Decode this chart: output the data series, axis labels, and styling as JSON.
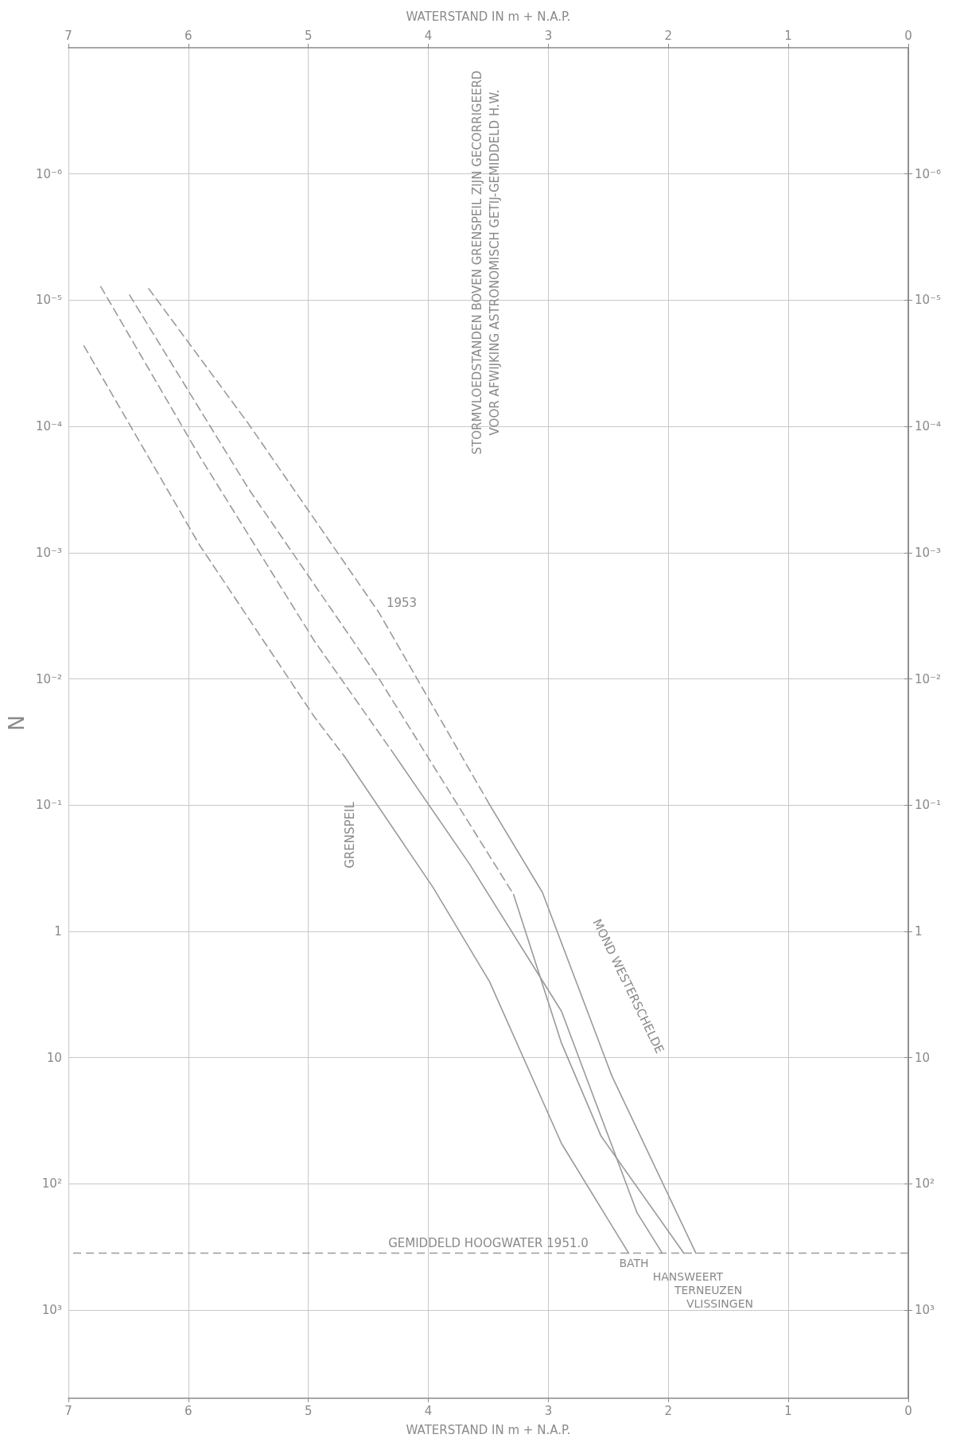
{
  "chart_data": {
    "type": "line",
    "xlabel": "WATERSTAND IN m + N.A.P.",
    "x2label": "WATERSTAND IN m + N.A.P.",
    "ylabel": "N",
    "xlim": [
      7,
      0
    ],
    "xticks": [
      7,
      6,
      5,
      4,
      3,
      2,
      1,
      0
    ],
    "x2lim": [
      7,
      0
    ],
    "x2ticks": [
      7,
      6,
      5,
      4,
      3,
      2,
      1,
      0
    ],
    "ylim": [
      5000,
      1e-07
    ],
    "yticks": [
      {
        "value": 1e-06,
        "label": "10⁻⁶"
      },
      {
        "value": 1e-05,
        "label": "10⁻⁵"
      },
      {
        "value": 0.0001,
        "label": "10⁻⁴"
      },
      {
        "value": 0.001,
        "label": "10⁻³"
      },
      {
        "value": 0.01,
        "label": "10⁻²"
      },
      {
        "value": 0.1,
        "label": "10⁻¹"
      },
      {
        "value": 1,
        "label": "1"
      },
      {
        "value": 10,
        "label": "10"
      },
      {
        "value": 100,
        "label": "10²"
      },
      {
        "value": 1000,
        "label": "10³"
      }
    ],
    "log": "y",
    "grid": true,
    "marker": "none",
    "series": [
      {
        "color": "#9a9a9a",
        "line_style": "dashed",
        "x": [
          6.87,
          5.91,
          4.95,
          4.7
        ],
        "values": [
          2.3e-05,
          0.00086,
          0.02,
          0.041
        ]
      },
      {
        "name": "BATH",
        "color": "#9a9a9a",
        "line_style": "solid",
        "x": [
          4.7,
          3.96,
          3.49,
          2.89,
          2.33
        ],
        "values": [
          0.041,
          0.45,
          2.5,
          48,
          355
        ]
      },
      {
        "color": "#9a9a9a",
        "line_style": "dashed",
        "x": [
          6.73,
          5.91,
          4.95,
          4.29
        ],
        "values": [
          7.8e-06,
          0.00017,
          0.005,
          0.039
        ]
      },
      {
        "name": "HANSWEERT",
        "color": "#9a9a9a",
        "line_style": "solid",
        "x": [
          4.29,
          3.66,
          2.89,
          2.26,
          2.05
        ],
        "values": [
          0.039,
          0.29,
          4.3,
          170,
          355
        ]
      },
      {
        "color": "#9a9a9a",
        "line_style": "dashed",
        "x": [
          6.49,
          5.5,
          4.41,
          3.29
        ],
        "values": [
          9.1e-06,
          0.00031,
          0.01,
          0.51
        ]
      },
      {
        "name": "TERNEUZEN",
        "color": "#9a9a9a",
        "line_style": "solid",
        "x": [
          3.29,
          2.89,
          2.56,
          1.87
        ],
        "values": [
          0.51,
          7.7,
          42,
          355
        ]
      },
      {
        "color": "#9a9a9a",
        "line_style": "dashed",
        "x": [
          6.33,
          5.5,
          4.41,
          3.49
        ],
        "values": [
          8.1e-06,
          9.5e-05,
          0.003,
          0.099
        ]
      },
      {
        "name": "VLISSINGEN",
        "color": "#9a9a9a",
        "line_style": "solid",
        "x": [
          3.49,
          3.05,
          2.47,
          1.77
        ],
        "values": [
          0.099,
          0.49,
          14,
          355
        ]
      }
    ],
    "ref_lines": [
      {
        "axis": "y",
        "value": 355,
        "label": "GEMIDDELD HOOGWATER 1951.0",
        "color": "#9a9a9a",
        "line_style": "dashed"
      }
    ],
    "annotations": [
      "STORMVLOEDSTANDEN BOVEN GRENSPEIL ZIJN GECORRIGEERD",
      "VOOR AFWIJKING ASTRONOMISCH GETIJ-GEMIDDELD H.W.",
      "1953",
      "GRENSPEIL",
      "MOND WESTERSCHELDE"
    ]
  }
}
